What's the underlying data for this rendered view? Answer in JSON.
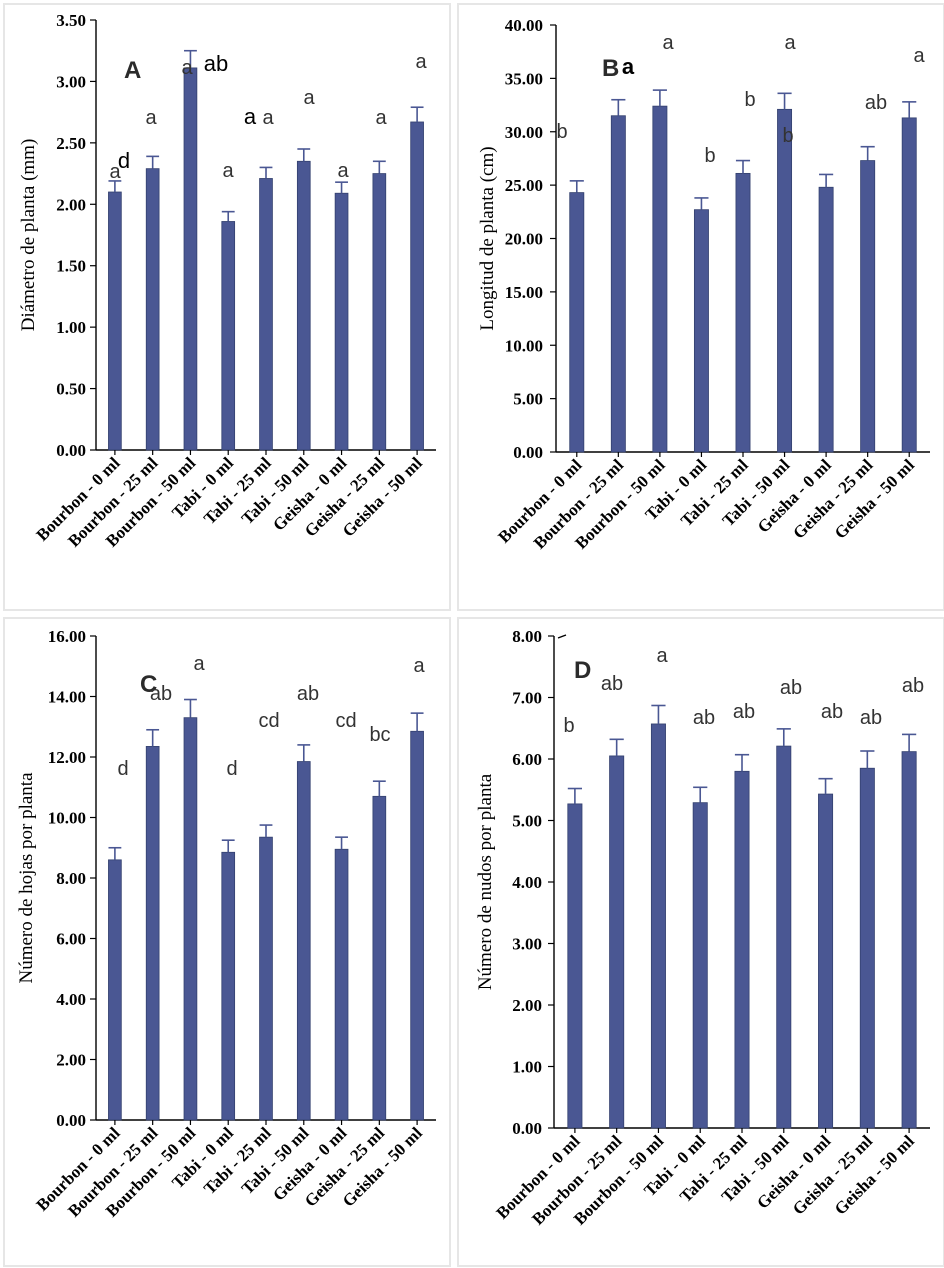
{
  "chart_data": [
    {
      "type": "bar",
      "panel": "A",
      "ylabel": "Diámetro de planta (mm)",
      "yticks": [
        "0.00",
        "0.50",
        "1.00",
        "1.50",
        "2.00",
        "2.50",
        "3.00",
        "3.50"
      ],
      "ylim": [
        0,
        3.5
      ],
      "categories": [
        "Bourbon - 0 ml",
        "Bourbon - 25 ml",
        "Bourbon - 50 ml",
        "Tabi - 0 ml",
        "Tabi - 25 ml",
        "Tabi - 50 ml",
        "Geisha - 0 ml",
        "Geisha - 25 ml",
        "Geisha - 50 ml"
      ],
      "values": [
        2.1,
        2.29,
        3.11,
        1.86,
        2.21,
        2.35,
        2.09,
        2.25,
        2.67
      ],
      "errors": [
        0.09,
        0.1,
        0.14,
        0.08,
        0.09,
        0.1,
        0.09,
        0.1,
        0.12
      ],
      "labels": [
        "a",
        "a",
        "a",
        "a",
        "a",
        "a",
        "a",
        "a",
        "a"
      ],
      "extra_labels": [
        {
          "text": "d",
          "index": 0
        },
        {
          "text": "ab",
          "index": 2
        },
        {
          "text": "a",
          "index": 3
        }
      ],
      "grid": false,
      "bar_color": "#4a5793"
    },
    {
      "type": "bar",
      "panel": "B",
      "ylabel": "Longitud de planta (cm)",
      "yticks": [
        "0.00",
        "5.00",
        "10.00",
        "15.00",
        "20.00",
        "25.00",
        "30.00",
        "35.00",
        "40.00"
      ],
      "ylim": [
        0,
        40
      ],
      "categories": [
        "Bourbon - 0 ml",
        "Bourbon - 25 ml",
        "Bourbon - 50 ml",
        "Tabi - 0 ml",
        "Tabi - 25 ml",
        "Tabi - 50 ml",
        "Geisha - 0 ml",
        "Geisha - 25 ml",
        "Geisha - 50 ml"
      ],
      "values": [
        24.3,
        31.5,
        32.4,
        22.7,
        26.1,
        32.1,
        24.8,
        27.3,
        31.3
      ],
      "errors": [
        1.1,
        1.5,
        1.5,
        1.1,
        1.2,
        1.5,
        1.2,
        1.3,
        1.5
      ],
      "labels": [
        "b",
        "a",
        "a",
        "b",
        "b",
        "a",
        "b",
        "ab",
        "a"
      ],
      "grid": false,
      "bar_color": "#4a5793"
    },
    {
      "type": "bar",
      "panel": "C",
      "ylabel": "Número de hojas por planta",
      "yticks": [
        "0.00",
        "2.00",
        "4.00",
        "6.00",
        "8.00",
        "10.00",
        "12.00",
        "14.00",
        "16.00"
      ],
      "ylim": [
        0,
        16
      ],
      "categories": [
        "Bourbon - 0 ml",
        "Bourbon - 25 ml",
        "Bourbon - 50 ml",
        "Tabi - 0 ml",
        "Tabi - 25 ml",
        "Tabi - 50 ml",
        "Geisha - 0 ml",
        "Geisha - 25 ml",
        "Geisha - 50 ml"
      ],
      "values": [
        8.6,
        12.35,
        13.3,
        8.85,
        9.35,
        11.85,
        8.95,
        10.7,
        12.85
      ],
      "errors": [
        0.4,
        0.55,
        0.6,
        0.4,
        0.4,
        0.55,
        0.4,
        0.5,
        0.6
      ],
      "labels": [
        "d",
        "ab",
        "a",
        "d",
        "cd",
        "ab",
        "cd",
        "bc",
        "a"
      ],
      "grid": false,
      "bar_color": "#4a5793"
    },
    {
      "type": "bar",
      "panel": "D",
      "ylabel": "Número de nudos por planta",
      "yticks": [
        "0.00",
        "1.00",
        "2.00",
        "3.00",
        "4.00",
        "5.00",
        "6.00",
        "7.00",
        "8.00"
      ],
      "ylim": [
        0,
        8
      ],
      "categories": [
        "Bourbon - 0 ml",
        "Bourbon - 25 ml",
        "Bourbon - 50 ml",
        "Tabi - 0 ml",
        "Tabi - 25 ml",
        "Tabi - 50 ml",
        "Geisha - 0 ml",
        "Geisha - 25 ml",
        "Geisha - 50 ml"
      ],
      "values": [
        5.27,
        6.05,
        6.57,
        5.29,
        5.8,
        6.21,
        5.43,
        5.85,
        6.12
      ],
      "errors": [
        0.25,
        0.27,
        0.3,
        0.25,
        0.27,
        0.28,
        0.25,
        0.28,
        0.28
      ],
      "labels": [
        "b",
        "ab",
        "a",
        "ab",
        "ab",
        "ab",
        "ab",
        "ab",
        "ab"
      ],
      "grid": false,
      "bar_color": "#4a5793"
    }
  ]
}
